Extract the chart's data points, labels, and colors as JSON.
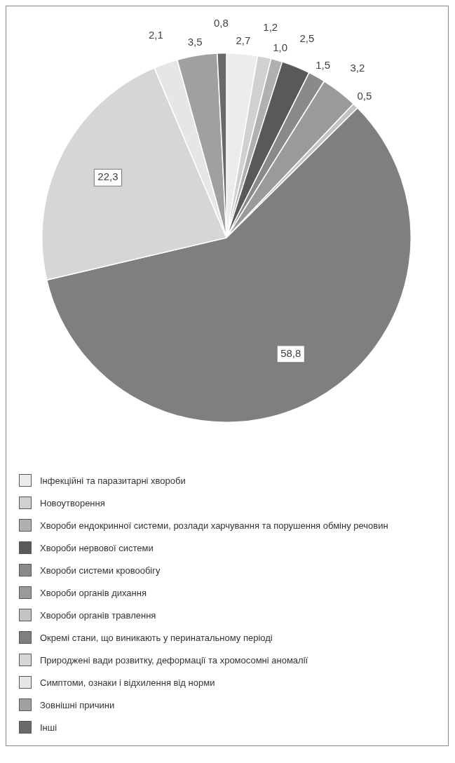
{
  "chart_data": {
    "type": "pie",
    "categories": [
      "Інфекційні та паразитарні хвороби",
      "Новоутворення",
      "Хвороби ендокринної системи, розлади харчування та порушення обміну речовин",
      "Хвороби нервової системи",
      "Хвороби системи кровообігу",
      "Хвороби органів дихання",
      "Хвороби органів травлення",
      "Окремі стани, що виникають у перинатальному періоді",
      "Природжені вади розвитку, деформації та хромосомні аномалії",
      "Симптоми, ознаки і відхилення від норми",
      "Зовнішні причини",
      "Інші"
    ],
    "values": [
      2.7,
      1.2,
      1.0,
      2.5,
      1.5,
      3.2,
      0.5,
      58.8,
      22.3,
      2.1,
      3.5,
      0.8
    ],
    "value_labels": [
      "2,7",
      "1,2",
      "1,0",
      "2,5",
      "1,5",
      "3,2",
      "0,5",
      "58,8",
      "22,3",
      "2,1",
      "3,5",
      "0,8"
    ],
    "colors": [
      "#ececec",
      "#d0d0d0",
      "#b0b0b0",
      "#595959",
      "#8a8a8a",
      "#9a9a9a",
      "#c4c4c4",
      "#7f7f7f",
      "#d6d6d6",
      "#e6e6e6",
      "#a0a0a0",
      "#6a6a6a"
    ],
    "legend": "bottom"
  }
}
